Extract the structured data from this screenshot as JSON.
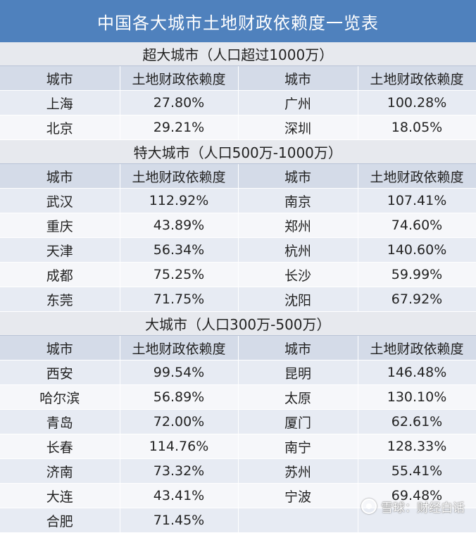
{
  "title": "中国各大城市土地财政依赖度一览表",
  "header": {
    "city": "城市",
    "value": "土地财政依赖度"
  },
  "sections": [
    {
      "title": "超大城市（人口超过1000万）",
      "rows": [
        {
          "left_city": "上海",
          "left_value": "27.80%",
          "right_city": "广州",
          "right_value": "100.28%"
        },
        {
          "left_city": "北京",
          "left_value": "29.21%",
          "right_city": "深圳",
          "right_value": "18.05%"
        }
      ]
    },
    {
      "title": "特大城市（人口500万-1000万）",
      "rows": [
        {
          "left_city": "武汉",
          "left_value": "112.92%",
          "right_city": "南京",
          "right_value": "107.41%"
        },
        {
          "left_city": "重庆",
          "left_value": "43.89%",
          "right_city": "郑州",
          "right_value": "74.60%"
        },
        {
          "left_city": "天津",
          "left_value": "56.34%",
          "right_city": "杭州",
          "right_value": "140.60%"
        },
        {
          "left_city": "成都",
          "left_value": "75.25%",
          "right_city": "长沙",
          "right_value": "59.99%"
        },
        {
          "left_city": "东莞",
          "left_value": "71.75%",
          "right_city": "沈阳",
          "right_value": "67.92%"
        }
      ]
    },
    {
      "title": "大城市（人口300万-500万）",
      "rows": [
        {
          "left_city": "西安",
          "left_value": "99.54%",
          "right_city": "昆明",
          "right_value": "146.48%"
        },
        {
          "left_city": "哈尔滨",
          "left_value": "56.89%",
          "right_city": "太原",
          "right_value": "130.10%"
        },
        {
          "left_city": "青岛",
          "left_value": "72.00%",
          "right_city": "厦门",
          "right_value": "62.61%"
        },
        {
          "left_city": "长春",
          "left_value": "114.76%",
          "right_city": "南宁",
          "right_value": "128.33%"
        },
        {
          "left_city": "济南",
          "left_value": "73.32%",
          "right_city": "苏州",
          "right_value": "55.41%"
        },
        {
          "left_city": "大连",
          "left_value": "43.41%",
          "right_city": "宁波",
          "right_value": "69.48%"
        },
        {
          "left_city": "合肥",
          "left_value": "71.45%",
          "right_city": "",
          "right_value": ""
        }
      ]
    }
  ],
  "watermark": {
    "text": "雪球：财经白话",
    "icon": "snowball-logo-icon"
  }
}
